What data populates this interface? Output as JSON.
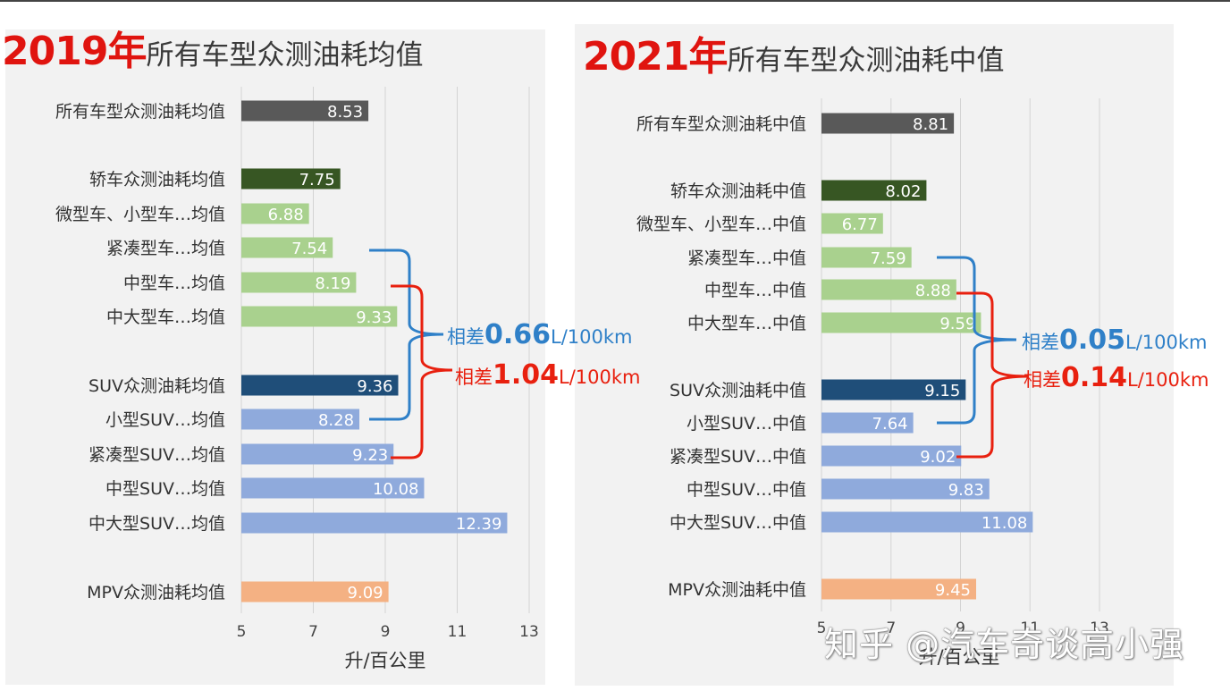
{
  "chart_data": [
    {
      "type": "bar",
      "orientation": "horizontal",
      "title_year": "2019年",
      "title_rest": "所有车型众测油耗均值",
      "xlabel": "升/百公里",
      "xlim": [
        5,
        13
      ],
      "xticks": [
        "5",
        "7",
        "9",
        "11",
        "13"
      ],
      "grid": true,
      "categories": [
        "所有车型众测油耗均值",
        "轿车众测油耗均值",
        "微型车、小型车…均值",
        "紧凑型车…均值",
        "中型车…均值",
        "中大型车…均值",
        "SUV众测油耗均值",
        "小型SUV…均值",
        "紧凑型SUV…均值",
        "中型SUV…均值",
        "中大型SUV…均值",
        "MPV众测油耗均值"
      ],
      "values": [
        8.53,
        7.75,
        6.88,
        7.54,
        8.19,
        9.33,
        9.36,
        8.28,
        9.23,
        10.08,
        12.39,
        9.09
      ],
      "value_labels": [
        "8.53",
        "7.75",
        "6.88",
        "7.54",
        "8.19",
        "9.33",
        "9.36",
        "8.28",
        "9.23",
        "10.08",
        "12.39",
        "9.09"
      ],
      "annotations": [
        {
          "prefix": "相差",
          "num": "0.66",
          "unit": "L/100km",
          "color": "#2f80c8"
        },
        {
          "prefix": "相差",
          "num": "1.04",
          "unit": "L/100km",
          "color": "#e8200f"
        }
      ]
    },
    {
      "type": "bar",
      "orientation": "horizontal",
      "title_year": "2021年",
      "title_rest": "所有车型众测油耗中值",
      "xlabel": "升/百公里",
      "xlim": [
        5,
        13
      ],
      "xticks": [
        "5",
        "7",
        "9",
        "11",
        "13"
      ],
      "grid": true,
      "categories": [
        "所有车型众测油耗中值",
        "轿车众测油耗中值",
        "微型车、小型车…中值",
        "紧凑型车…中值",
        "中型车…中值",
        "中大型车…中值",
        "SUV众测油耗中值",
        "小型SUV…中值",
        "紧凑型SUV…中值",
        "中型SUV…中值",
        "中大型SUV…中值",
        "MPV众测油耗中值"
      ],
      "values": [
        8.81,
        8.02,
        6.77,
        7.59,
        8.88,
        9.59,
        9.15,
        7.64,
        9.02,
        9.83,
        11.08,
        9.45
      ],
      "value_labels": [
        "8.81",
        "8.02",
        "6.77",
        "7.59",
        "8.88",
        "9.59",
        "9.15",
        "7.64",
        "9.02",
        "9.83",
        "11.08",
        "9.45"
      ],
      "annotations": [
        {
          "prefix": "相差",
          "num": "0.05",
          "unit": "L/100km",
          "color": "#2f80c8"
        },
        {
          "prefix": "相差",
          "num": "0.14",
          "unit": "L/100km",
          "color": "#e8200f"
        }
      ]
    }
  ],
  "bar_colors": [
    "#595959",
    "#375623",
    "#a9d18e",
    "#a9d18e",
    "#a9d18e",
    "#a9d18e",
    "#1f4e79",
    "#8faadc",
    "#8faadc",
    "#8faadc",
    "#8faadc",
    "#f4b183"
  ],
  "watermark": "知乎 @汽车奇谈高小强"
}
